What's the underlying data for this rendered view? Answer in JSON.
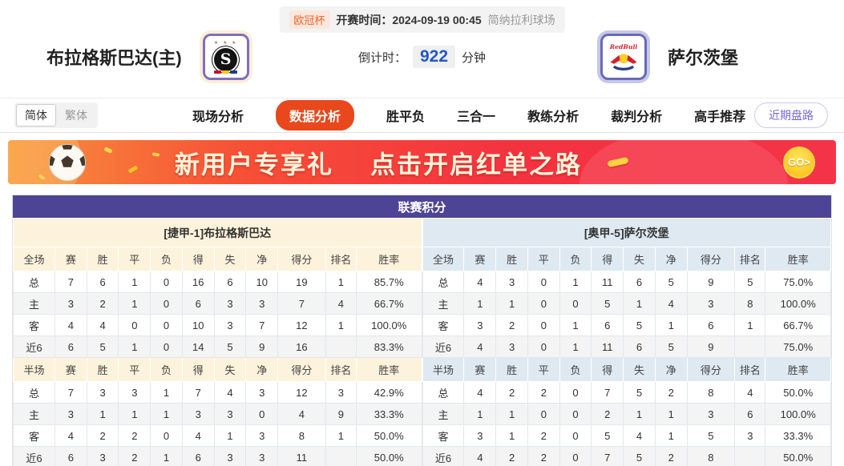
{
  "header": {
    "league_badge": "欧冠杯",
    "kickoff_text": "开赛时间：2024-09-19 00:45",
    "venue": "简纳拉利球场",
    "home_team": "布拉格斯巴达(主)",
    "away_team": "萨尔茨堡",
    "countdown_label": "倒计时：",
    "countdown_value": "922",
    "countdown_unit": "分钟",
    "home_logo_letter": "S",
    "home_logo_stars": "★ ★ ★"
  },
  "nav": {
    "lang_simplified": "简体",
    "lang_traditional": "繁体",
    "tabs": [
      {
        "label": "现场分析",
        "active": false
      },
      {
        "label": "数据分析",
        "active": true
      },
      {
        "label": "胜平负",
        "active": false
      },
      {
        "label": "三合一",
        "active": false
      },
      {
        "label": "教练分析",
        "active": false
      },
      {
        "label": "裁判分析",
        "active": false
      },
      {
        "label": "高手推荐",
        "active": false
      }
    ],
    "recent_trends": "近期盘路"
  },
  "banner": {
    "title": "新用户专享礼",
    "subtitle": "点击开启红单之路",
    "go_label": "GO>"
  },
  "standings": {
    "title": "联赛积分",
    "columns_full": [
      "全场",
      "赛",
      "胜",
      "平",
      "负",
      "得",
      "失",
      "净",
      "得分",
      "排名",
      "胜率"
    ],
    "columns_half": [
      "半场",
      "赛",
      "胜",
      "平",
      "负",
      "得",
      "失",
      "净",
      "得分",
      "排名",
      "胜率"
    ],
    "home": {
      "team_header": "[捷甲-1]布拉格斯巴达",
      "full": [
        {
          "label": "总",
          "values": [
            "7",
            "6",
            "1",
            "0",
            "16",
            "6",
            "10",
            "19",
            "1",
            "85.7%"
          ]
        },
        {
          "label": "主",
          "values": [
            "3",
            "2",
            "1",
            "0",
            "6",
            "3",
            "3",
            "7",
            "4",
            "66.7%"
          ]
        },
        {
          "label": "客",
          "values": [
            "4",
            "4",
            "0",
            "0",
            "10",
            "3",
            "7",
            "12",
            "1",
            "100.0%"
          ]
        },
        {
          "label": "近6",
          "values": [
            "6",
            "5",
            "1",
            "0",
            "14",
            "5",
            "9",
            "16",
            "",
            "83.3%"
          ]
        }
      ],
      "half": [
        {
          "label": "总",
          "values": [
            "7",
            "3",
            "3",
            "1",
            "7",
            "4",
            "3",
            "12",
            "3",
            "42.9%"
          ]
        },
        {
          "label": "主",
          "values": [
            "3",
            "1",
            "1",
            "1",
            "3",
            "3",
            "0",
            "4",
            "9",
            "33.3%"
          ]
        },
        {
          "label": "客",
          "values": [
            "4",
            "2",
            "2",
            "0",
            "4",
            "1",
            "3",
            "8",
            "1",
            "50.0%"
          ]
        },
        {
          "label": "近6",
          "values": [
            "6",
            "3",
            "2",
            "1",
            "6",
            "3",
            "3",
            "11",
            "",
            "50.0%"
          ]
        }
      ]
    },
    "away": {
      "team_header": "[奥甲-5]萨尔茨堡",
      "full": [
        {
          "label": "总",
          "values": [
            "4",
            "3",
            "0",
            "1",
            "11",
            "6",
            "5",
            "9",
            "5",
            "75.0%"
          ]
        },
        {
          "label": "主",
          "values": [
            "1",
            "1",
            "0",
            "0",
            "5",
            "1",
            "4",
            "3",
            "8",
            "100.0%"
          ]
        },
        {
          "label": "客",
          "values": [
            "3",
            "2",
            "0",
            "1",
            "6",
            "5",
            "1",
            "6",
            "1",
            "66.7%"
          ]
        },
        {
          "label": "近6",
          "values": [
            "4",
            "3",
            "0",
            "1",
            "11",
            "6",
            "5",
            "9",
            "",
            "75.0%"
          ]
        }
      ],
      "half": [
        {
          "label": "总",
          "values": [
            "4",
            "2",
            "2",
            "0",
            "7",
            "5",
            "2",
            "8",
            "4",
            "50.0%"
          ]
        },
        {
          "label": "主",
          "values": [
            "1",
            "1",
            "0",
            "0",
            "2",
            "1",
            "1",
            "3",
            "6",
            "100.0%"
          ]
        },
        {
          "label": "客",
          "values": [
            "3",
            "1",
            "2",
            "0",
            "5",
            "4",
            "1",
            "5",
            "3",
            "33.3%"
          ]
        },
        {
          "label": "近6",
          "values": [
            "4",
            "2",
            "2",
            "0",
            "7",
            "5",
            "2",
            "8",
            "",
            "50.0%"
          ]
        }
      ]
    }
  },
  "colors": {
    "accent_orange": "#e8481c",
    "badge_orange": "#e8642c",
    "countdown_blue": "#2257c5",
    "standings_purple": "#4e4495",
    "home_header_bg": "#fdf3dc",
    "away_header_bg": "#dfe9f1",
    "home_row_red": "#d93025",
    "away_row_blue": "#2440cc",
    "banner_red": "#f43340",
    "go_yellow": "#fcc51e"
  }
}
